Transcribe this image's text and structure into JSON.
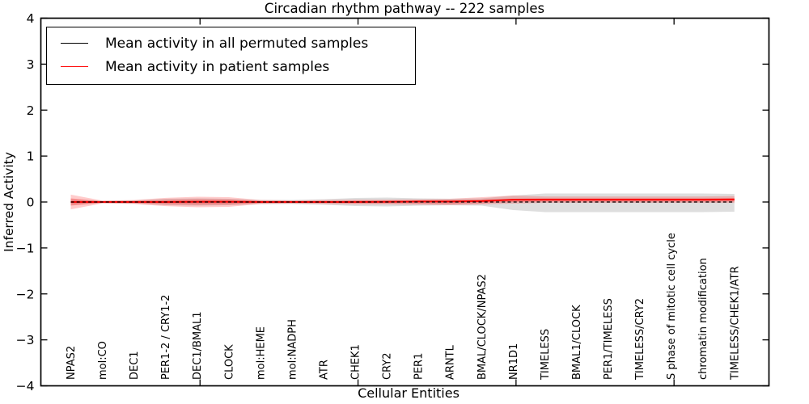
{
  "figure": {
    "title": "Circadian rhythm pathway -- 222 samples",
    "xlabel": "Cellular Entities",
    "ylabel": "Inferred Activity"
  },
  "legend": {
    "position": "upper left",
    "entries": [
      {
        "label": "Mean activity in all permuted samples",
        "color": "#000000"
      },
      {
        "label": "Mean activity in patient samples",
        "color": "#ff0000"
      }
    ]
  },
  "colors": {
    "background": "#ffffff",
    "axis": "#000000",
    "permuted_line": "#000000",
    "patient_line": "#ff0000",
    "permuted_band": "rgba(0,0,0,0.13)",
    "patient_band": "rgba(255,0,0,0.20)"
  },
  "chart_data": {
    "type": "line",
    "title": "Circadian rhythm pathway -- 222 samples",
    "xlabel": "Cellular Entities",
    "ylabel": "Inferred Activity",
    "ylim": [
      -4,
      4
    ],
    "yticks": [
      4,
      3,
      2,
      1,
      0,
      -1,
      -2,
      -3,
      -4
    ],
    "ytick_labels": [
      "4",
      "3",
      "2",
      "1",
      "0",
      "−1",
      "−2",
      "−3",
      "−4"
    ],
    "xticks_major_indices": [
      4,
      9,
      14,
      19
    ],
    "grid": false,
    "legend_position": "upper left",
    "categories": [
      "NPAS2",
      "mol:CO",
      "DEC1",
      "PER1-2 / CRY1-2",
      "DEC1/BMAL1",
      "CLOCK",
      "mol:HEME",
      "mol:NADPH",
      "ATR",
      "CHEK1",
      "CRY2",
      "PER1",
      "ARNTL",
      "BMAL/CLOCK/NPAS2",
      "NR1D1",
      "TIMELESS",
      "BMAL1/CLOCK",
      "PER1/TIMELESS",
      "TIMELESS/CRY2",
      "S phase of mitotic cell cycle",
      "chromatin modification",
      "TIMELESS/CHEK1/ATR"
    ],
    "series": [
      {
        "name": "Mean activity in all permuted samples",
        "color": "#000000",
        "style": "dashed",
        "values": [
          0,
          0,
          0,
          0,
          0,
          0,
          0,
          0,
          0,
          0,
          0,
          0,
          0,
          0,
          0,
          0,
          0,
          0,
          0,
          0,
          0,
          0
        ]
      },
      {
        "name": "Mean activity in patient samples",
        "color": "#ff0000",
        "style": "solid",
        "values": [
          0,
          0,
          0,
          0,
          0.005,
          0.005,
          0,
          0,
          0,
          0,
          0.005,
          0.01,
          0.01,
          0.02,
          0.05,
          0.05,
          0.05,
          0.05,
          0.05,
          0.05,
          0.05,
          0.055
        ]
      }
    ],
    "bands": [
      {
        "name": "permuted-sample-spread",
        "color": "rgba(0,0,0,0.13)",
        "upper": [
          0.06,
          0.026,
          0.035,
          0.07,
          0.08,
          0.07,
          0.044,
          0.044,
          0.06,
          0.088,
          0.097,
          0.08,
          0.07,
          0.08,
          0.14,
          0.185,
          0.185,
          0.185,
          0.185,
          0.185,
          0.185,
          0.176
        ],
        "lower": [
          -0.06,
          -0.026,
          -0.035,
          -0.07,
          -0.08,
          -0.07,
          -0.044,
          -0.044,
          -0.06,
          -0.088,
          -0.097,
          -0.08,
          -0.07,
          -0.08,
          -0.176,
          -0.22,
          -0.22,
          -0.22,
          -0.22,
          -0.22,
          -0.22,
          -0.211
        ]
      },
      {
        "name": "patient-sample-spread-outer",
        "color": "rgba(255,0,0,0.20)",
        "upper": [
          0.16,
          0.03,
          0.044,
          0.09,
          0.114,
          0.105,
          0.044,
          0.035,
          0.044,
          0.053,
          0.053,
          0.06,
          0.07,
          0.105,
          0.14,
          0.12,
          0.12,
          0.12,
          0.12,
          0.12,
          0.12,
          0.13
        ],
        "lower": [
          -0.16,
          -0.03,
          -0.044,
          -0.09,
          -0.114,
          -0.105,
          -0.044,
          -0.035,
          -0.044,
          -0.053,
          -0.053,
          -0.06,
          -0.07,
          -0.053,
          -0.035,
          -0.02,
          -0.02,
          -0.02,
          -0.02,
          -0.02,
          -0.02,
          -0.02
        ]
      },
      {
        "name": "patient-sample-spread-inner",
        "color": "rgba(255,0,0,0.25)",
        "upper": [
          0.08,
          0.015,
          0.022,
          0.045,
          0.057,
          0.053,
          0.022,
          0.018,
          0.022,
          0.027,
          0.027,
          0.03,
          0.035,
          0.053,
          0.07,
          0.08,
          0.08,
          0.08,
          0.08,
          0.08,
          0.08,
          0.085
        ],
        "lower": [
          -0.08,
          -0.015,
          -0.022,
          -0.045,
          -0.057,
          -0.053,
          -0.022,
          -0.018,
          -0.022,
          -0.027,
          -0.027,
          -0.03,
          -0.035,
          -0.027,
          0.0,
          0.01,
          0.01,
          0.01,
          0.01,
          0.01,
          0.01,
          0.01
        ]
      }
    ]
  }
}
